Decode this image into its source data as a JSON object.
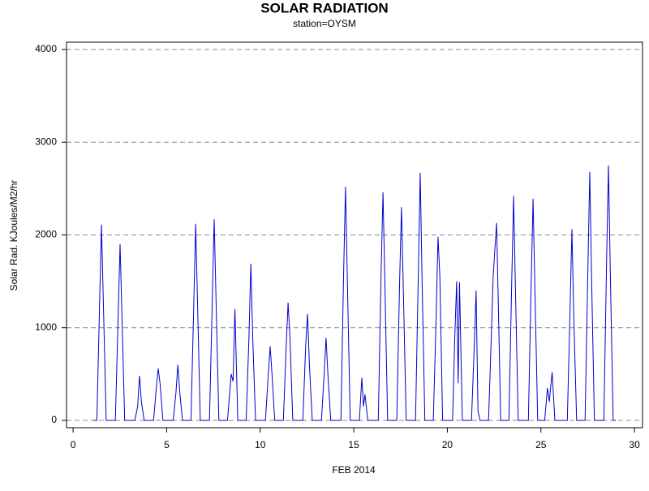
{
  "chart_data": {
    "type": "line",
    "title": "SOLAR RADIATION",
    "subtitle": "station=OYSM",
    "x_label": "FEB 2014",
    "y_label": "Solar Rad. KJoules/M2/hr",
    "xlim": [
      -0.35,
      30.43
    ],
    "ylim": [
      -79,
      4079
    ],
    "xticks": [
      0,
      5,
      10,
      15,
      20,
      25,
      30
    ],
    "yticks": [
      0,
      1000,
      2000,
      3000,
      4000
    ],
    "grid": true,
    "series": [
      {
        "color": "#0000cc",
        "x": [
          1.1,
          1.27,
          1.42,
          1.52,
          1.62,
          1.77,
          2.26,
          2.41,
          2.51,
          2.61,
          2.76,
          3.3,
          3.45,
          3.55,
          3.65,
          3.8,
          4.3,
          4.45,
          4.55,
          4.65,
          4.8,
          5.35,
          5.5,
          5.6,
          5.7,
          5.85,
          6.3,
          6.45,
          6.55,
          6.65,
          6.8,
          7.29,
          7.44,
          7.54,
          7.64,
          7.79,
          8.25,
          8.45,
          8.55,
          8.65,
          8.8,
          9.25,
          9.4,
          9.5,
          9.6,
          9.75,
          10.28,
          10.43,
          10.53,
          10.63,
          10.78,
          11.24,
          11.39,
          11.49,
          11.59,
          11.74,
          12.28,
          12.43,
          12.53,
          12.63,
          12.78,
          13.27,
          13.42,
          13.52,
          13.62,
          13.77,
          14.31,
          14.46,
          14.56,
          14.66,
          14.81,
          15.3,
          15.43,
          15.52,
          15.6,
          15.75,
          16.31,
          16.46,
          16.56,
          16.66,
          16.81,
          17.3,
          17.45,
          17.55,
          17.65,
          17.8,
          18.3,
          18.45,
          18.55,
          18.65,
          18.8,
          19.25,
          19.4,
          19.5,
          19.6,
          19.75,
          20.28,
          20.4,
          20.5,
          20.58,
          20.65,
          20.8,
          21.29,
          21.44,
          21.54,
          21.64,
          21.75,
          22.2,
          22.35,
          22.45,
          22.63,
          22.73,
          22.85,
          23.29,
          23.44,
          23.54,
          23.64,
          23.79,
          24.33,
          24.48,
          24.58,
          24.68,
          24.83,
          25.2,
          25.35,
          25.45,
          25.6,
          25.75,
          26.41,
          26.56,
          26.66,
          26.76,
          26.91,
          27.36,
          27.51,
          27.61,
          27.71,
          27.86,
          28.36,
          28.51,
          28.61,
          28.71,
          28.86,
          29.0
        ],
        "values": [
          0,
          0,
          1270,
          2110,
          1270,
          0,
          0,
          1140,
          1900,
          1140,
          0,
          0,
          150,
          480,
          200,
          0,
          0,
          350,
          560,
          400,
          0,
          0,
          300,
          600,
          300,
          0,
          0,
          1270,
          2120,
          1270,
          0,
          0,
          1300,
          2170,
          1300,
          0,
          0,
          500,
          420,
          1200,
          0,
          0,
          900,
          1690,
          900,
          0,
          0,
          500,
          800,
          500,
          0,
          0,
          800,
          1270,
          900,
          0,
          0,
          800,
          1150,
          600,
          0,
          0,
          500,
          890,
          500,
          0,
          0,
          1600,
          2520,
          1500,
          0,
          0,
          460,
          150,
          280,
          0,
          0,
          1600,
          2460,
          1500,
          0,
          0,
          1500,
          2300,
          1400,
          0,
          0,
          1600,
          2670,
          1500,
          0,
          0,
          1100,
          1980,
          1550,
          0,
          0,
          900,
          1500,
          400,
          1490,
          0,
          0,
          800,
          1400,
          100,
          0,
          0,
          900,
          1550,
          2130,
          1200,
          0,
          0,
          1500,
          2420,
          1400,
          0,
          0,
          1500,
          2390,
          1400,
          0,
          0,
          350,
          200,
          520,
          0,
          0,
          1200,
          2060,
          1100,
          0,
          0,
          1600,
          2680,
          1500,
          0,
          0,
          1700,
          2750,
          1600,
          0,
          0
        ]
      }
    ]
  }
}
